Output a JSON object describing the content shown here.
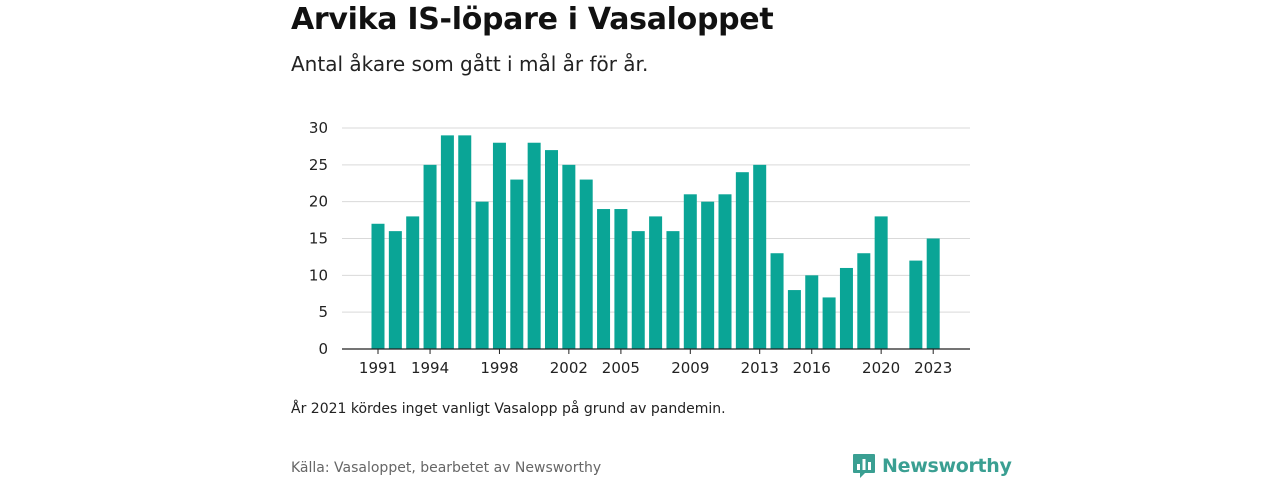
{
  "title": "Arvika IS-löpare i Vasaloppet",
  "subtitle": "Antal åkare som gått i mål år för år.",
  "note": "År 2021 kördes inget vanligt Vasalopp på grund av pandemin.",
  "source": "Källa: Vasaloppet, bearbetet av Newsworthy",
  "brand": {
    "name": "Newsworthy",
    "color": "#3a9f92",
    "icon": "bar-chart-speech-bubble-icon"
  },
  "chart_data": {
    "type": "bar",
    "title": "",
    "xlabel": "",
    "ylabel": "",
    "ylim": [
      0,
      30
    ],
    "yticks": [
      0,
      5,
      10,
      15,
      20,
      25,
      30
    ],
    "xtick_labels": [
      "1991",
      "1994",
      "1998",
      "2002",
      "2005",
      "2009",
      "2013",
      "2016",
      "2020",
      "2023"
    ],
    "grid": true,
    "bar_color": "#0aa596",
    "categories": [
      1991,
      1992,
      1993,
      1994,
      1995,
      1996,
      1997,
      1998,
      1999,
      2000,
      2001,
      2002,
      2003,
      2004,
      2005,
      2006,
      2007,
      2008,
      2009,
      2010,
      2011,
      2012,
      2013,
      2014,
      2015,
      2016,
      2017,
      2018,
      2019,
      2020,
      2021,
      2022,
      2023
    ],
    "values": [
      17,
      16,
      18,
      25,
      29,
      29,
      20,
      28,
      23,
      28,
      27,
      25,
      23,
      19,
      19,
      16,
      18,
      16,
      21,
      20,
      21,
      24,
      25,
      13,
      8,
      10,
      7,
      11,
      13,
      18,
      null,
      12,
      15
    ]
  }
}
